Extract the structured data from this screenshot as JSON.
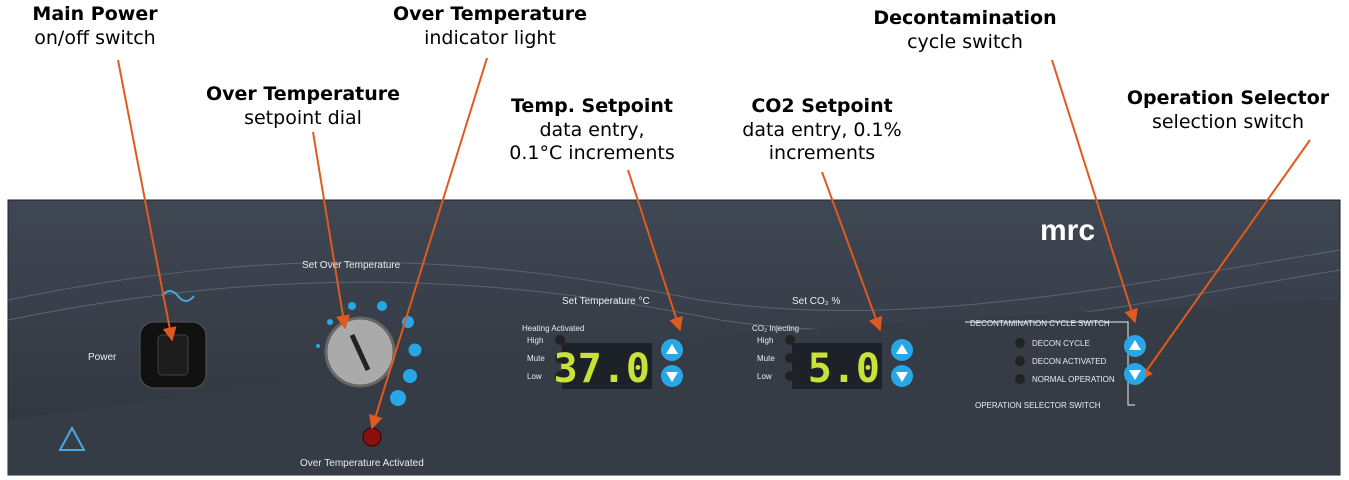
{
  "callouts": [
    {
      "title": "Main Power",
      "lines": [
        "on/off switch"
      ]
    },
    {
      "title": "Over Temperature",
      "lines": [
        "setpoint dial"
      ]
    },
    {
      "title": "Over Temperature",
      "lines": [
        "indicator light"
      ]
    },
    {
      "title": "Temp. Setpoint",
      "lines": [
        "data entry,",
        "0.1°C increments"
      ]
    },
    {
      "title": "CO2 Setpoint",
      "lines": [
        "data entry, 0.1%",
        "increments"
      ]
    },
    {
      "title": "Decontamination",
      "lines": [
        "cycle switch"
      ]
    },
    {
      "title": "Operation Selector",
      "lines": [
        "selection switch"
      ]
    }
  ],
  "panel": {
    "brand": "mrc",
    "power": "Power",
    "set_over_temp": "Set Over Temperature",
    "over_temp_activated": "Over Temperature Activated",
    "temp": {
      "title": "Set Temperature °C",
      "status": "Heating Activated",
      "levels": [
        "High",
        "Mute",
        "Low"
      ],
      "display": "37.0"
    },
    "co2": {
      "title": "Set CO₂ %",
      "status": "CO₂ Injecting",
      "levels": [
        "High",
        "Mute",
        "Low"
      ],
      "display": "5.0"
    },
    "decon_switch": "DECONTAMINATION CYCLE SWITCH",
    "modes": [
      "DECON CYCLE",
      "DECON ACTIVATED",
      "NORMAL OPERATION"
    ],
    "operation_switch": "OPERATION SELECTOR SWITCH"
  }
}
